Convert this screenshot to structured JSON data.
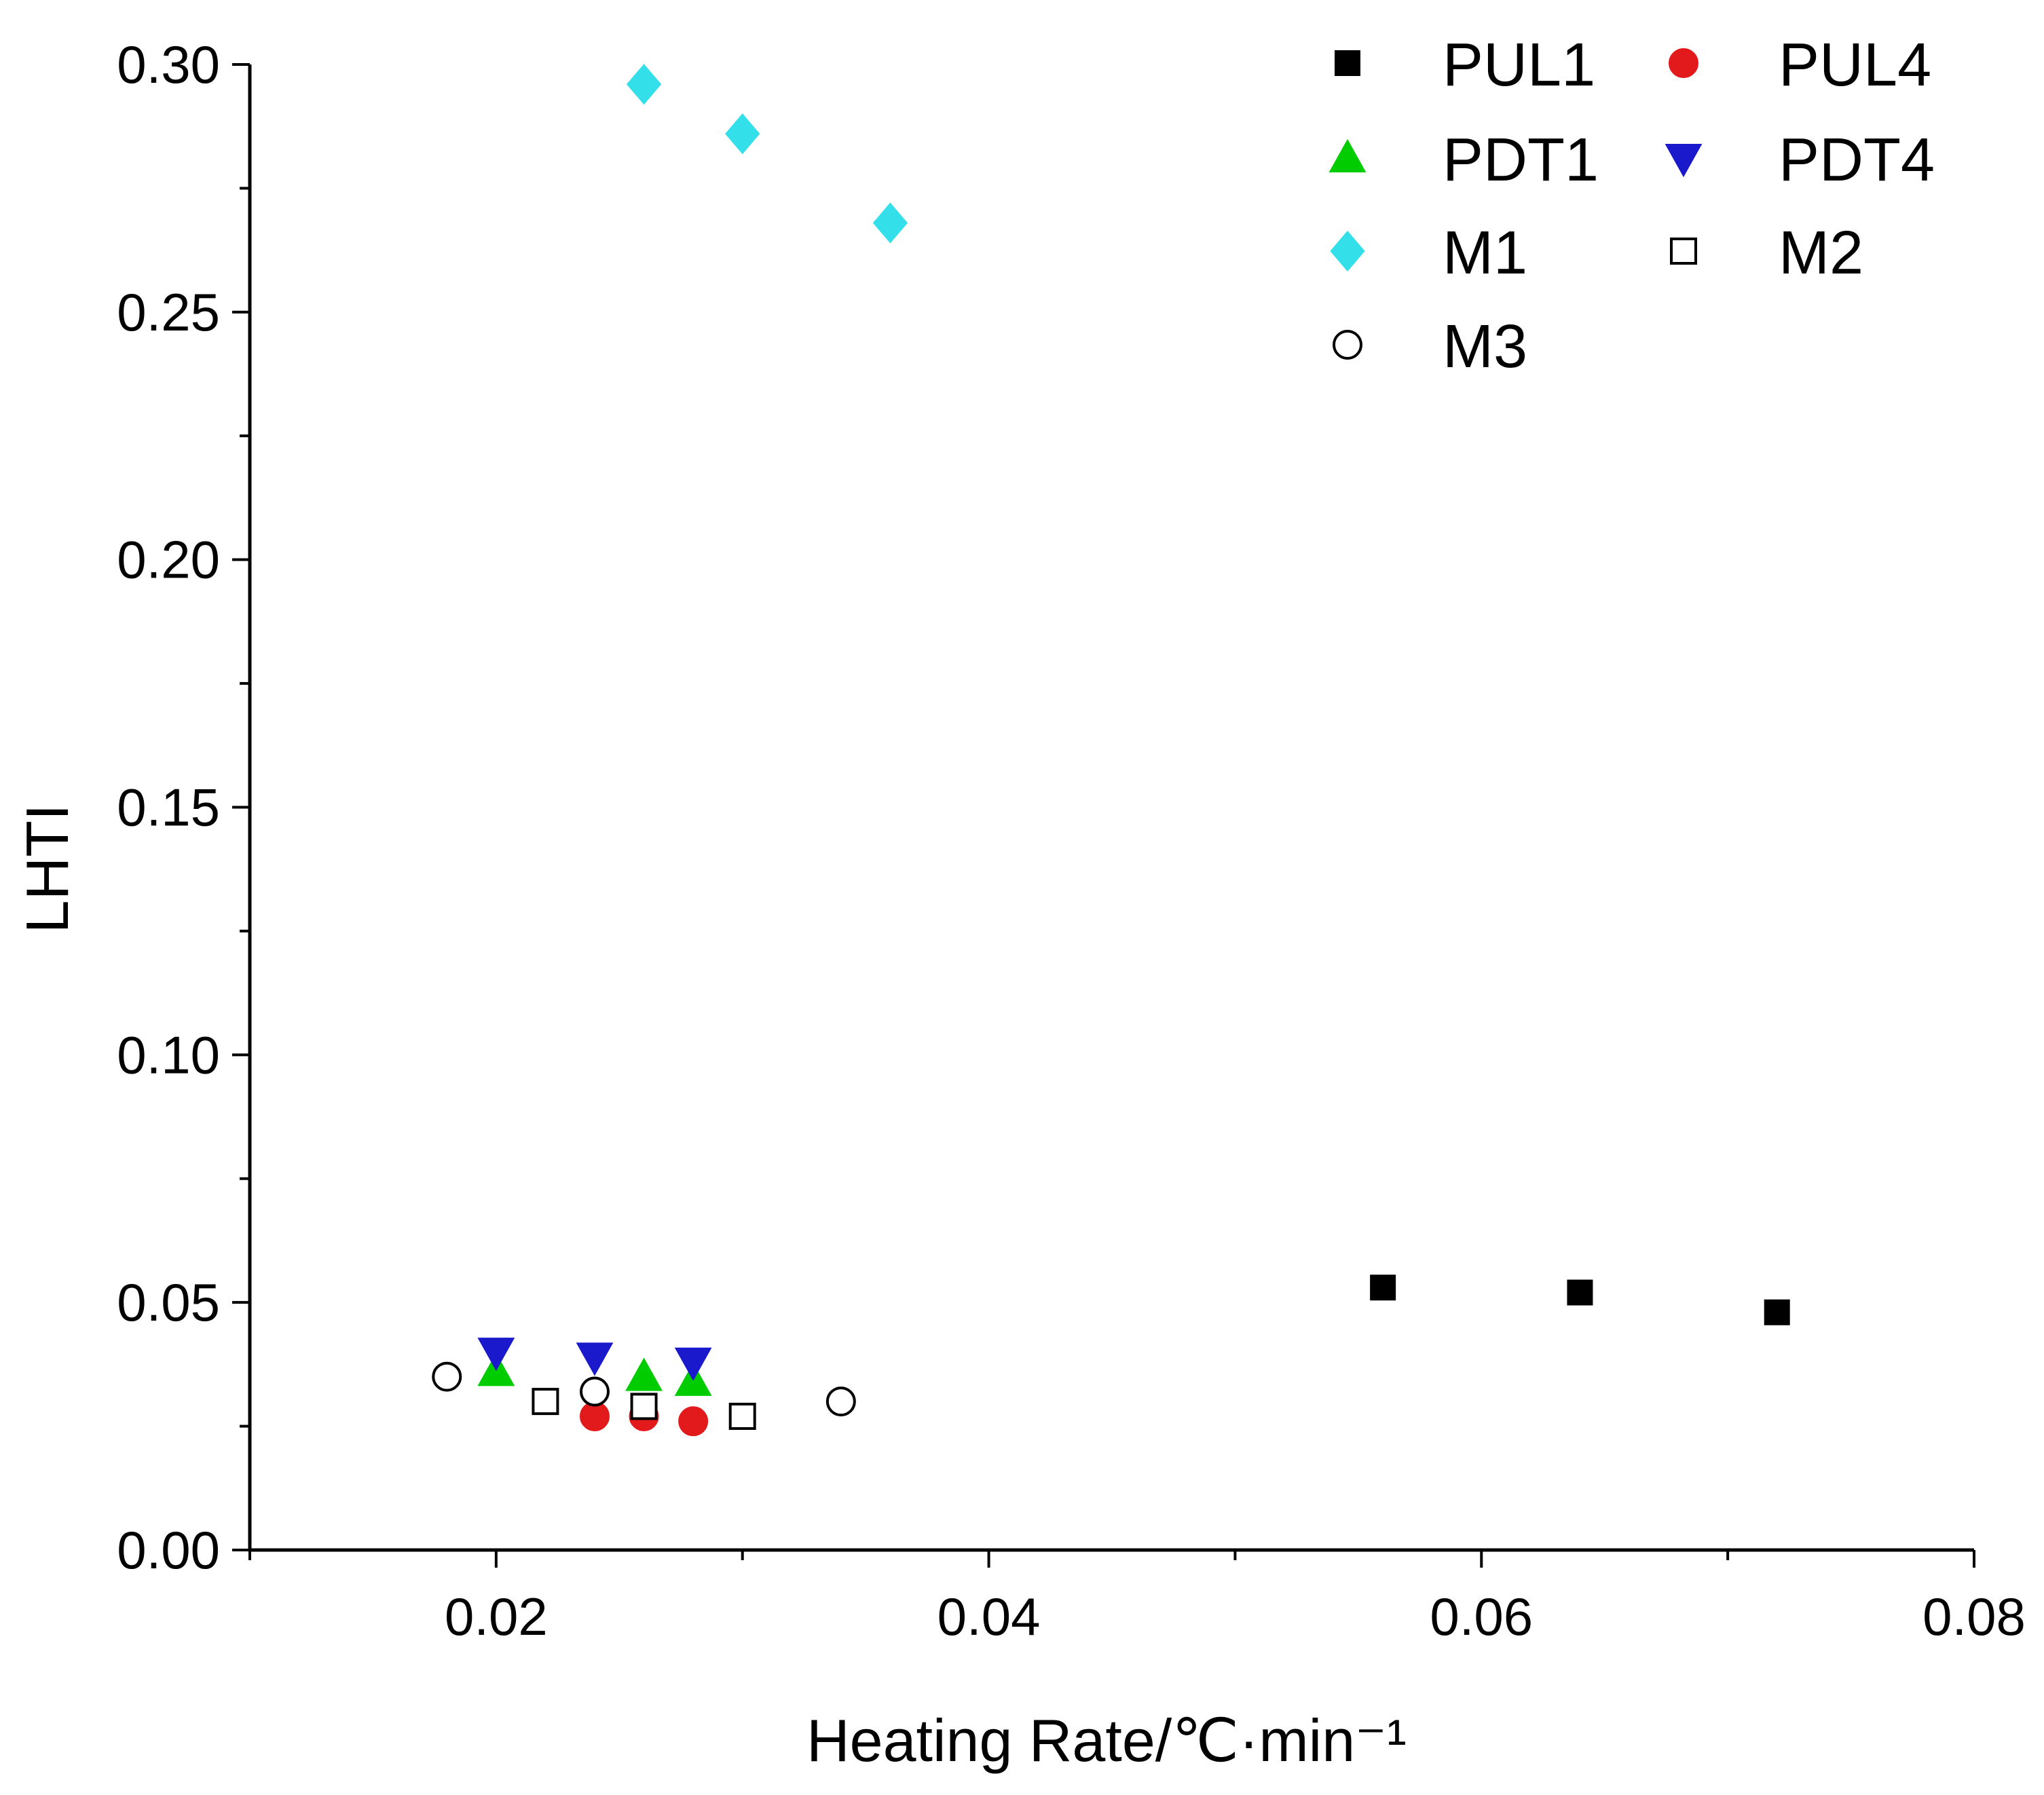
{
  "chart_data": {
    "type": "scatter",
    "title": "",
    "xlabel": "Heating Rate/℃·min⁻¹",
    "ylabel": "LHTI",
    "xlim": [
      0.01,
      0.08
    ],
    "ylim": [
      0.0,
      0.3
    ],
    "grid": false,
    "legend_position": "top-right",
    "x_ticks": [
      0.02,
      0.04,
      0.06,
      0.08
    ],
    "x_tick_labels": [
      "0.02",
      "0.04",
      "0.06",
      "0.08"
    ],
    "y_ticks": [
      0.0,
      0.05,
      0.1,
      0.15,
      0.2,
      0.25,
      0.3
    ],
    "y_tick_labels": [
      "0.00",
      "0.05",
      "0.10",
      "0.15",
      "0.20",
      "0.25",
      "0.30"
    ],
    "series": [
      {
        "name": "PUL1",
        "marker": "square",
        "filled": true,
        "color": "#000000",
        "points": [
          {
            "x": 0.056,
            "y": 0.053
          },
          {
            "x": 0.064,
            "y": 0.052
          },
          {
            "x": 0.072,
            "y": 0.048
          }
        ]
      },
      {
        "name": "PUL4",
        "marker": "circle",
        "filled": true,
        "color": "#e31a1c",
        "points": [
          {
            "x": 0.024,
            "y": 0.027
          },
          {
            "x": 0.026,
            "y": 0.027
          },
          {
            "x": 0.028,
            "y": 0.026
          }
        ]
      },
      {
        "name": "PDT1",
        "marker": "triangle-up",
        "filled": true,
        "color": "#00cc00",
        "points": [
          {
            "x": 0.02,
            "y": 0.036
          },
          {
            "x": 0.026,
            "y": 0.035
          },
          {
            "x": 0.028,
            "y": 0.034
          }
        ]
      },
      {
        "name": "PDT4",
        "marker": "triangle-down",
        "filled": true,
        "color": "#1a1acc",
        "points": [
          {
            "x": 0.02,
            "y": 0.04
          },
          {
            "x": 0.024,
            "y": 0.039
          },
          {
            "x": 0.028,
            "y": 0.038
          }
        ]
      },
      {
        "name": "M1",
        "marker": "diamond",
        "filled": true,
        "color": "#33e0ea",
        "points": [
          {
            "x": 0.026,
            "y": 0.296
          },
          {
            "x": 0.03,
            "y": 0.286
          },
          {
            "x": 0.036,
            "y": 0.268
          }
        ]
      },
      {
        "name": "M2",
        "marker": "square",
        "filled": false,
        "color": "#000000",
        "points": [
          {
            "x": 0.022,
            "y": 0.03
          },
          {
            "x": 0.026,
            "y": 0.029
          },
          {
            "x": 0.03,
            "y": 0.027
          }
        ]
      },
      {
        "name": "M3",
        "marker": "circle",
        "filled": false,
        "color": "#000000",
        "points": [
          {
            "x": 0.018,
            "y": 0.035
          },
          {
            "x": 0.024,
            "y": 0.032
          },
          {
            "x": 0.034,
            "y": 0.03
          }
        ]
      }
    ]
  }
}
